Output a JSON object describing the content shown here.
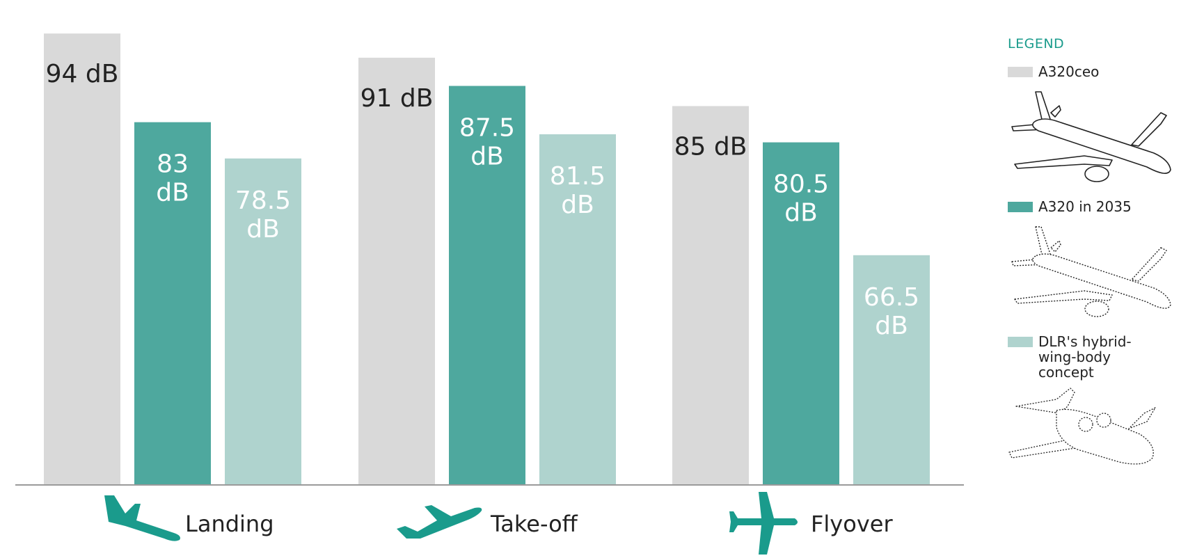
{
  "chart_data": {
    "type": "bar",
    "categories": [
      "Landing",
      "Take-off",
      "Flyover"
    ],
    "series": [
      {
        "name": "A320ceo",
        "values": [
          94,
          91,
          85
        ],
        "labels": [
          "94 dB",
          "91 dB",
          "85 dB"
        ],
        "color": "#d9d9d9"
      },
      {
        "name": "A320 in 2035",
        "values": [
          83,
          87.5,
          80.5
        ],
        "labels": [
          "83 dB",
          "87.5 dB",
          "80.5 dB"
        ],
        "color": "#4ea89e"
      },
      {
        "name": "DLR's hybrid-wing-body concept",
        "values": [
          78.5,
          81.5,
          66.5
        ],
        "labels": [
          "78.5 dB",
          "81.5 dB",
          "66.5 dB"
        ],
        "color": "#afd3ce"
      }
    ],
    "unit": "dB",
    "ylim": [
      0,
      96
    ],
    "grid": false,
    "legend_position": "right",
    "title": "",
    "xlabel": "",
    "ylabel": ""
  },
  "legend": {
    "title": "LEGEND",
    "items": [
      {
        "label": "A320ceo",
        "color": "#d9d9d9",
        "icon": "a320ceo-aircraft-icon"
      },
      {
        "label": "A320 in 2035",
        "color": "#4ea89e",
        "icon": "a320-2035-aircraft-icon"
      },
      {
        "label": "DLR's hybrid-wing-body concept",
        "color": "#afd3ce",
        "icon": "hybrid-wing-body-aircraft-icon"
      }
    ]
  },
  "category_icons": [
    "landing-plane-icon",
    "takeoff-plane-icon",
    "flyover-plane-icon"
  ],
  "colors": {
    "accent": "#1a9b8c",
    "axis": "#9a9a9a"
  }
}
